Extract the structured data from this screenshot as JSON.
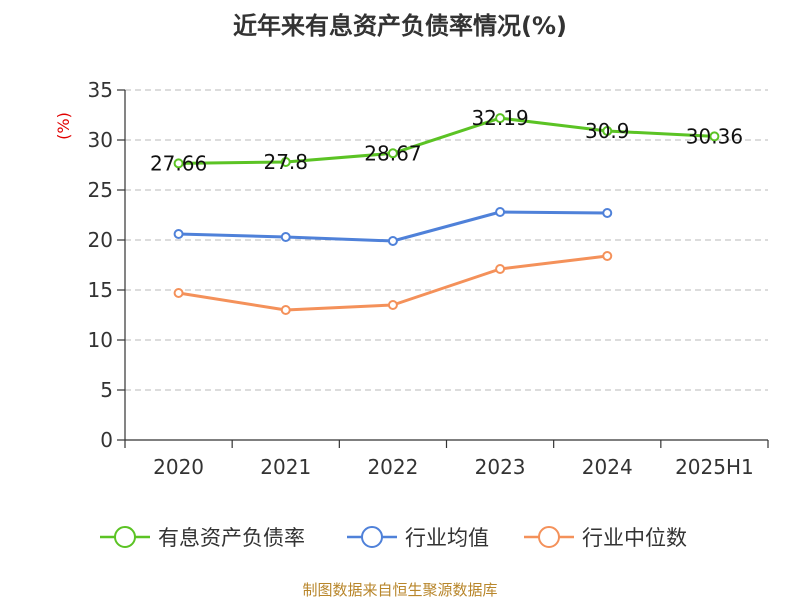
{
  "chart_data": {
    "type": "line",
    "title": "近年来有息资产负债率情况(%)",
    "ylabel": "(%)",
    "xlabel": "",
    "categories": [
      "2020",
      "2021",
      "2022",
      "2023",
      "2024",
      "2025H1"
    ],
    "ylim": [
      0,
      35
    ],
    "yticks": [
      0,
      5,
      10,
      15,
      20,
      25,
      30,
      35
    ],
    "grid": true,
    "legend_position": "bottom",
    "series": [
      {
        "name": "有息资产负债率",
        "color": "#5bc324",
        "values": [
          27.66,
          27.8,
          28.67,
          32.19,
          30.9,
          30.36
        ],
        "labels": [
          "27.66",
          "27.8",
          "28.67",
          "32.19",
          "30.9",
          "30.36"
        ]
      },
      {
        "name": "行业均值",
        "color": "#4f81d9",
        "values": [
          20.6,
          20.3,
          19.9,
          22.8,
          22.7,
          null
        ]
      },
      {
        "name": "行业中位数",
        "color": "#f4915a",
        "values": [
          14.7,
          13.0,
          13.5,
          17.1,
          18.4,
          null
        ]
      }
    ]
  },
  "source": "制图数据来自恒生聚源数据库"
}
